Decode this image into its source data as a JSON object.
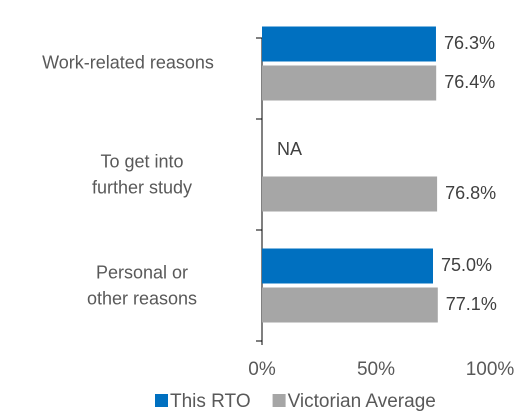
{
  "chart_data": {
    "type": "barh",
    "categories": [
      "Work-related reasons",
      "To get into further study",
      "Personal or other reasons"
    ],
    "series": [
      {
        "name": "This RTO",
        "color": "#0070c0",
        "values": [
          76.3,
          null,
          75.0
        ],
        "value_labels": [
          "76.3%",
          "NA",
          "75.0%"
        ]
      },
      {
        "name": "Victorian Average",
        "color": "#a6a6a6",
        "values": [
          76.4,
          76.8,
          77.1
        ],
        "value_labels": [
          "76.4%",
          "76.8%",
          "77.1%"
        ]
      }
    ],
    "xlim": [
      0,
      100
    ],
    "xticks": [
      {
        "value": 0,
        "label": "0%"
      },
      {
        "value": 50,
        "label": "50%"
      },
      {
        "value": 100,
        "label": "100%"
      }
    ],
    "legend": "bottom"
  }
}
